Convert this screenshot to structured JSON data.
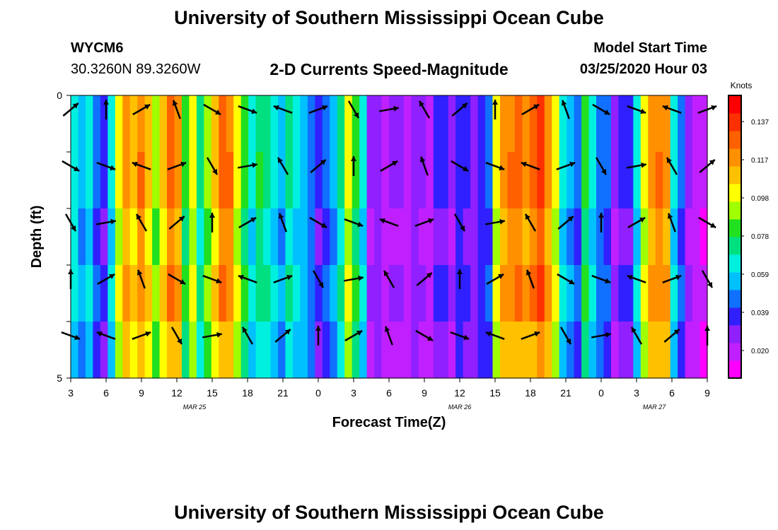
{
  "header": {
    "title": "University of Southern Mississippi Ocean Cube",
    "station": "WYCM6",
    "coords": "30.3260N 89.3260W",
    "subtitle": "2-D Currents Speed-Magnitude",
    "model_label": "Model Start Time",
    "model_time": "03/25/2020 Hour 03"
  },
  "footer": {
    "title": "University of Southern Mississippi Ocean Cube"
  },
  "colorbar": {
    "unit": "Knots",
    "ticks": [
      "0.137",
      "0.117",
      "0.098",
      "0.078",
      "0.059",
      "0.039",
      "0.020"
    ],
    "colors": [
      "#ff00ff",
      "#c020ff",
      "#9020ff",
      "#3020ff",
      "#1070ff",
      "#00c0ff",
      "#00f0e0",
      "#00e080",
      "#20e020",
      "#a0ff00",
      "#ffff00",
      "#ffc000",
      "#ff9000",
      "#ff6000",
      "#ff3000",
      "#ff0000"
    ]
  },
  "chart_data": {
    "type": "heatmap",
    "xlabel": "Forecast Time(Z)",
    "ylabel": "Depth (ft)",
    "x_tick_labels": [
      "3",
      "6",
      "9",
      "12",
      "15",
      "18",
      "21",
      "0",
      "3",
      "6",
      "9",
      "12",
      "15",
      "18",
      "21",
      "0",
      "3",
      "6",
      "9"
    ],
    "y_tick_labels": [
      "0",
      "5"
    ],
    "ylim": [
      0,
      5
    ],
    "date_labels": [
      {
        "text": "MAR 25",
        "after_tick": 3.5
      },
      {
        "text": "MAR 26",
        "after_tick": 11
      },
      {
        "text": "MAR 27",
        "after_tick": 16.5
      }
    ],
    "speed_range_knots": [
      0.0,
      0.157
    ],
    "column_speeds_knots": [
      0.065,
      0.05,
      0.06,
      0.04,
      0.03,
      0.06,
      0.1,
      0.12,
      0.11,
      0.125,
      0.11,
      0.09,
      0.11,
      0.13,
      0.12,
      0.08,
      0.1,
      0.07,
      0.09,
      0.11,
      0.13,
      0.125,
      0.1,
      0.08,
      0.06,
      0.075,
      0.07,
      0.06,
      0.05,
      0.07,
      0.06,
      0.055,
      0.045,
      0.03,
      0.04,
      0.05,
      0.07,
      0.1,
      0.08,
      0.06,
      0.02,
      0.025,
      0.015,
      0.02,
      0.02,
      0.015,
      0.025,
      0.02,
      0.015,
      0.03,
      0.03,
      0.02,
      0.035,
      0.03,
      0.025,
      0.035,
      0.04,
      0.1,
      0.12,
      0.125,
      0.13,
      0.12,
      0.13,
      0.14,
      0.12,
      0.1,
      0.06,
      0.05,
      0.04,
      0.08,
      0.06,
      0.045,
      0.04,
      0.02,
      0.03,
      0.03,
      0.06,
      0.1,
      0.12,
      0.125,
      0.12,
      0.06,
      0.04,
      0.02,
      0.015,
      0.01
    ],
    "depth_row_factors": [
      1.0,
      1.05,
      0.95,
      1.0,
      0.9
    ]
  }
}
